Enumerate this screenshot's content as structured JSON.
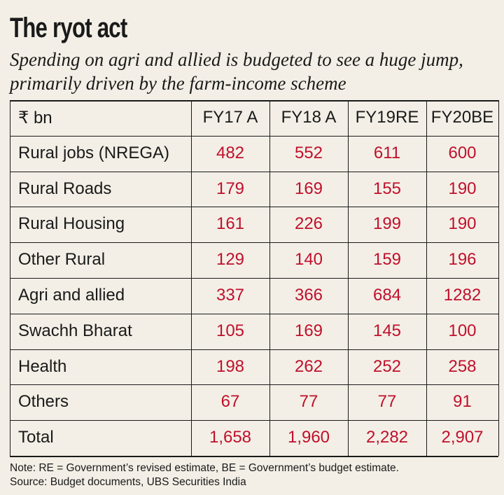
{
  "title": "The ryot act",
  "subtitle": "Spending on agri and allied is budgeted to see a huge jump, primarily driven by the farm-income scheme",
  "unit_label": "₹ bn",
  "colors": {
    "value": "#c0102c",
    "text": "#1a1a1a",
    "background": "#f3efe6"
  },
  "chart_data": {
    "type": "table",
    "columns": [
      "FY17 A",
      "FY18 A",
      "FY19RE",
      "FY20BE"
    ],
    "rows": [
      {
        "label": "Rural jobs (NREGA)",
        "values": [
          "482",
          "552",
          "611",
          "600"
        ]
      },
      {
        "label": "Rural Roads",
        "values": [
          "179",
          "169",
          "155",
          "190"
        ]
      },
      {
        "label": "Rural Housing",
        "values": [
          "161",
          "226",
          "199",
          "190"
        ]
      },
      {
        "label": "Other Rural",
        "values": [
          "129",
          "140",
          "159",
          "196"
        ]
      },
      {
        "label": "Agri and allied",
        "values": [
          "337",
          "366",
          "684",
          "1282"
        ]
      },
      {
        "label": "Swachh Bharat",
        "values": [
          "105",
          "169",
          "145",
          "100"
        ]
      },
      {
        "label": "Health",
        "values": [
          "198",
          "262",
          "252",
          "258"
        ]
      },
      {
        "label": "Others",
        "values": [
          "67",
          "77",
          "77",
          "91"
        ]
      },
      {
        "label": "Total",
        "values": [
          "1,658",
          "1,960",
          "2,282",
          "2,907"
        ]
      }
    ]
  },
  "notes": {
    "line1": "Note: RE = Government’s revised estimate, BE = Government’s budget estimate.",
    "line2": "Source: Budget documents, UBS Securities India"
  }
}
